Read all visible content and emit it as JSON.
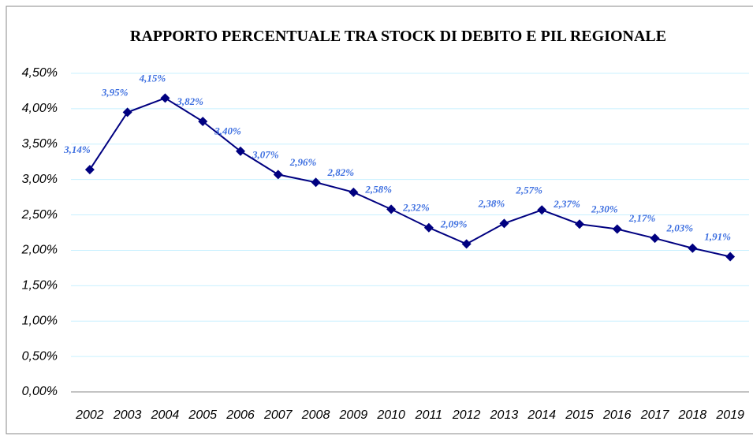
{
  "chart_data": {
    "type": "line",
    "title": "RAPPORTO PERCENTUALE TRA STOCK DI DEBITO E PIL REGIONALE",
    "categories": [
      "2002",
      "2003",
      "2004",
      "2005",
      "2006",
      "2007",
      "2008",
      "2009",
      "2010",
      "2011",
      "2012",
      "2013",
      "2014",
      "2015",
      "2016",
      "2017",
      "2018",
      "2019"
    ],
    "values": [
      3.14,
      3.95,
      4.15,
      3.82,
      3.4,
      3.07,
      2.96,
      2.82,
      2.58,
      2.32,
      2.09,
      2.38,
      2.57,
      2.37,
      2.3,
      2.17,
      2.03,
      1.91
    ],
    "value_labels": [
      "3,14%",
      "3,95%",
      "4,15%",
      "3,82%",
      "3,40%",
      "3,07%",
      "2,96%",
      "2,82%",
      "2,58%",
      "2,32%",
      "2,09%",
      "2,38%",
      "2,57%",
      "2,37%",
      "2,30%",
      "2,17%",
      "2,03%",
      "1,91%"
    ],
    "color": "#000080",
    "ylim": [
      0,
      4.5
    ],
    "yticks": [
      {
        "value": 0,
        "label": "0,00%"
      },
      {
        "value": 0.5,
        "label": "0,50%"
      },
      {
        "value": 1,
        "label": "1,00%"
      },
      {
        "value": 1.5,
        "label": "1,50%"
      },
      {
        "value": 2,
        "label": "2,00%"
      },
      {
        "value": 2.5,
        "label": "2,50%"
      },
      {
        "value": 3,
        "label": "3,00%"
      },
      {
        "value": 3.5,
        "label": "3,50%"
      },
      {
        "value": 4,
        "label": "4,00%"
      },
      {
        "value": 4.5,
        "label": "4,50%"
      }
    ],
    "grid": true
  }
}
